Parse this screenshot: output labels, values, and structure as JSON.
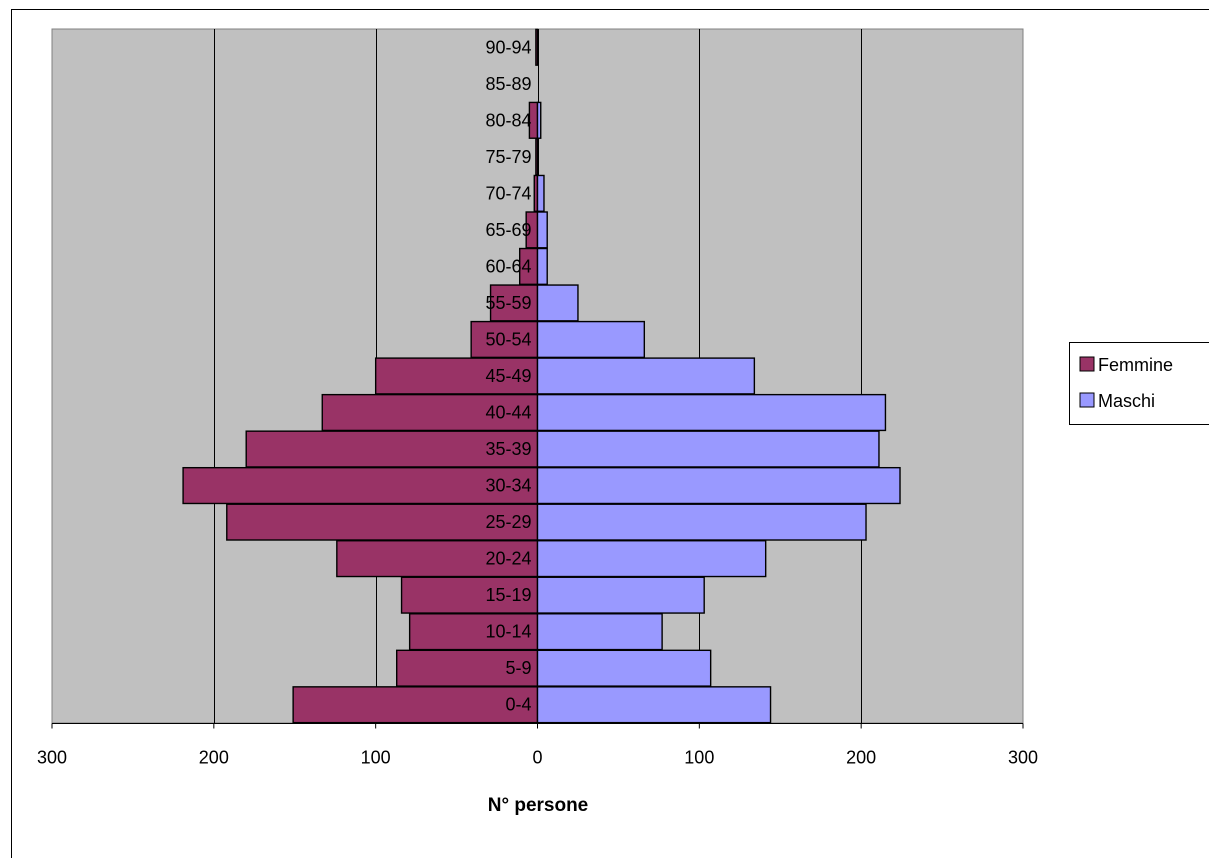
{
  "chart_data": {
    "type": "bar",
    "orientation": "horizontal",
    "subtype": "population-pyramid",
    "categories": [
      "0-4",
      "5-9",
      "10-14",
      "15-19",
      "20-24",
      "25-29",
      "30-34",
      "35-39",
      "40-44",
      "45-49",
      "50-54",
      "55-59",
      "60-64",
      "65-69",
      "70-74",
      "75-79",
      "80-84",
      "85-89",
      "90-94"
    ],
    "series": [
      {
        "name": "Femmine",
        "color": "#993366",
        "side": "left",
        "values": [
          151,
          87,
          79,
          84,
          124,
          192,
          219,
          180,
          133,
          100,
          41,
          29,
          11,
          7,
          2,
          1,
          5,
          0,
          1
        ]
      },
      {
        "name": "Maschi",
        "color": "#9999ff",
        "side": "right",
        "values": [
          144,
          107,
          77,
          103,
          141,
          203,
          224,
          211,
          215,
          134,
          66,
          25,
          6,
          6,
          4,
          0,
          2,
          0,
          0
        ]
      }
    ],
    "x_tick_labels": [
      "300",
      "200",
      "100",
      "0",
      "100",
      "200",
      "300"
    ],
    "xlim": [
      -300,
      300
    ],
    "xlabel": "N° persone",
    "ylabel": "",
    "title": "",
    "grid": "vertical",
    "legend_position": "right",
    "plot_background": "#c0c0c0"
  }
}
